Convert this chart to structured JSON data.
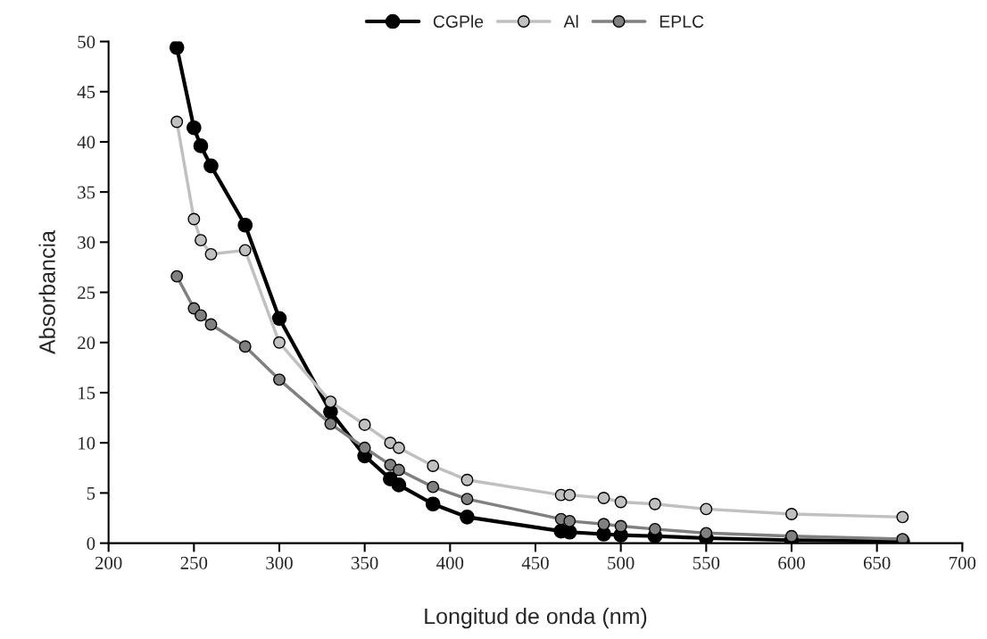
{
  "chart_data": {
    "type": "line",
    "xlabel": "Longitud de onda (nm)",
    "ylabel": "Absorbancia",
    "x": [
      240,
      250,
      254,
      260,
      280,
      300,
      330,
      350,
      365,
      370,
      390,
      410,
      465,
      470,
      490,
      500,
      520,
      550,
      600,
      665
    ],
    "series": [
      {
        "name": "CGPle",
        "color": "#000000",
        "values": [
          49.4,
          41.4,
          39.6,
          37.6,
          31.7,
          22.4,
          13.1,
          8.7,
          6.4,
          5.8,
          3.9,
          2.6,
          1.2,
          1.1,
          0.9,
          0.8,
          0.7,
          0.5,
          0.3,
          0.2
        ]
      },
      {
        "name": "Al",
        "color": "#c0c0c0",
        "values": [
          42.0,
          32.3,
          30.2,
          28.8,
          29.2,
          20.0,
          14.1,
          11.8,
          10.0,
          9.5,
          7.7,
          6.3,
          4.8,
          4.8,
          4.5,
          4.1,
          3.9,
          3.4,
          2.9,
          2.6
        ]
      },
      {
        "name": "EPLC",
        "color": "#808080",
        "values": [
          26.6,
          23.4,
          22.7,
          21.8,
          19.6,
          16.3,
          11.9,
          9.5,
          7.8,
          7.3,
          5.6,
          4.4,
          2.4,
          2.2,
          1.9,
          1.7,
          1.4,
          1.0,
          0.7,
          0.4
        ]
      }
    ],
    "xlim": [
      200,
      700
    ],
    "xticks": [
      200,
      250,
      300,
      350,
      400,
      450,
      500,
      550,
      600,
      650,
      700
    ],
    "ylim": [
      0,
      50
    ],
    "yticks": [
      0,
      5,
      10,
      15,
      20,
      25,
      30,
      35,
      40,
      45,
      50
    ],
    "marker": "circle",
    "line_style": "solid",
    "legend": "top",
    "grid": false
  }
}
